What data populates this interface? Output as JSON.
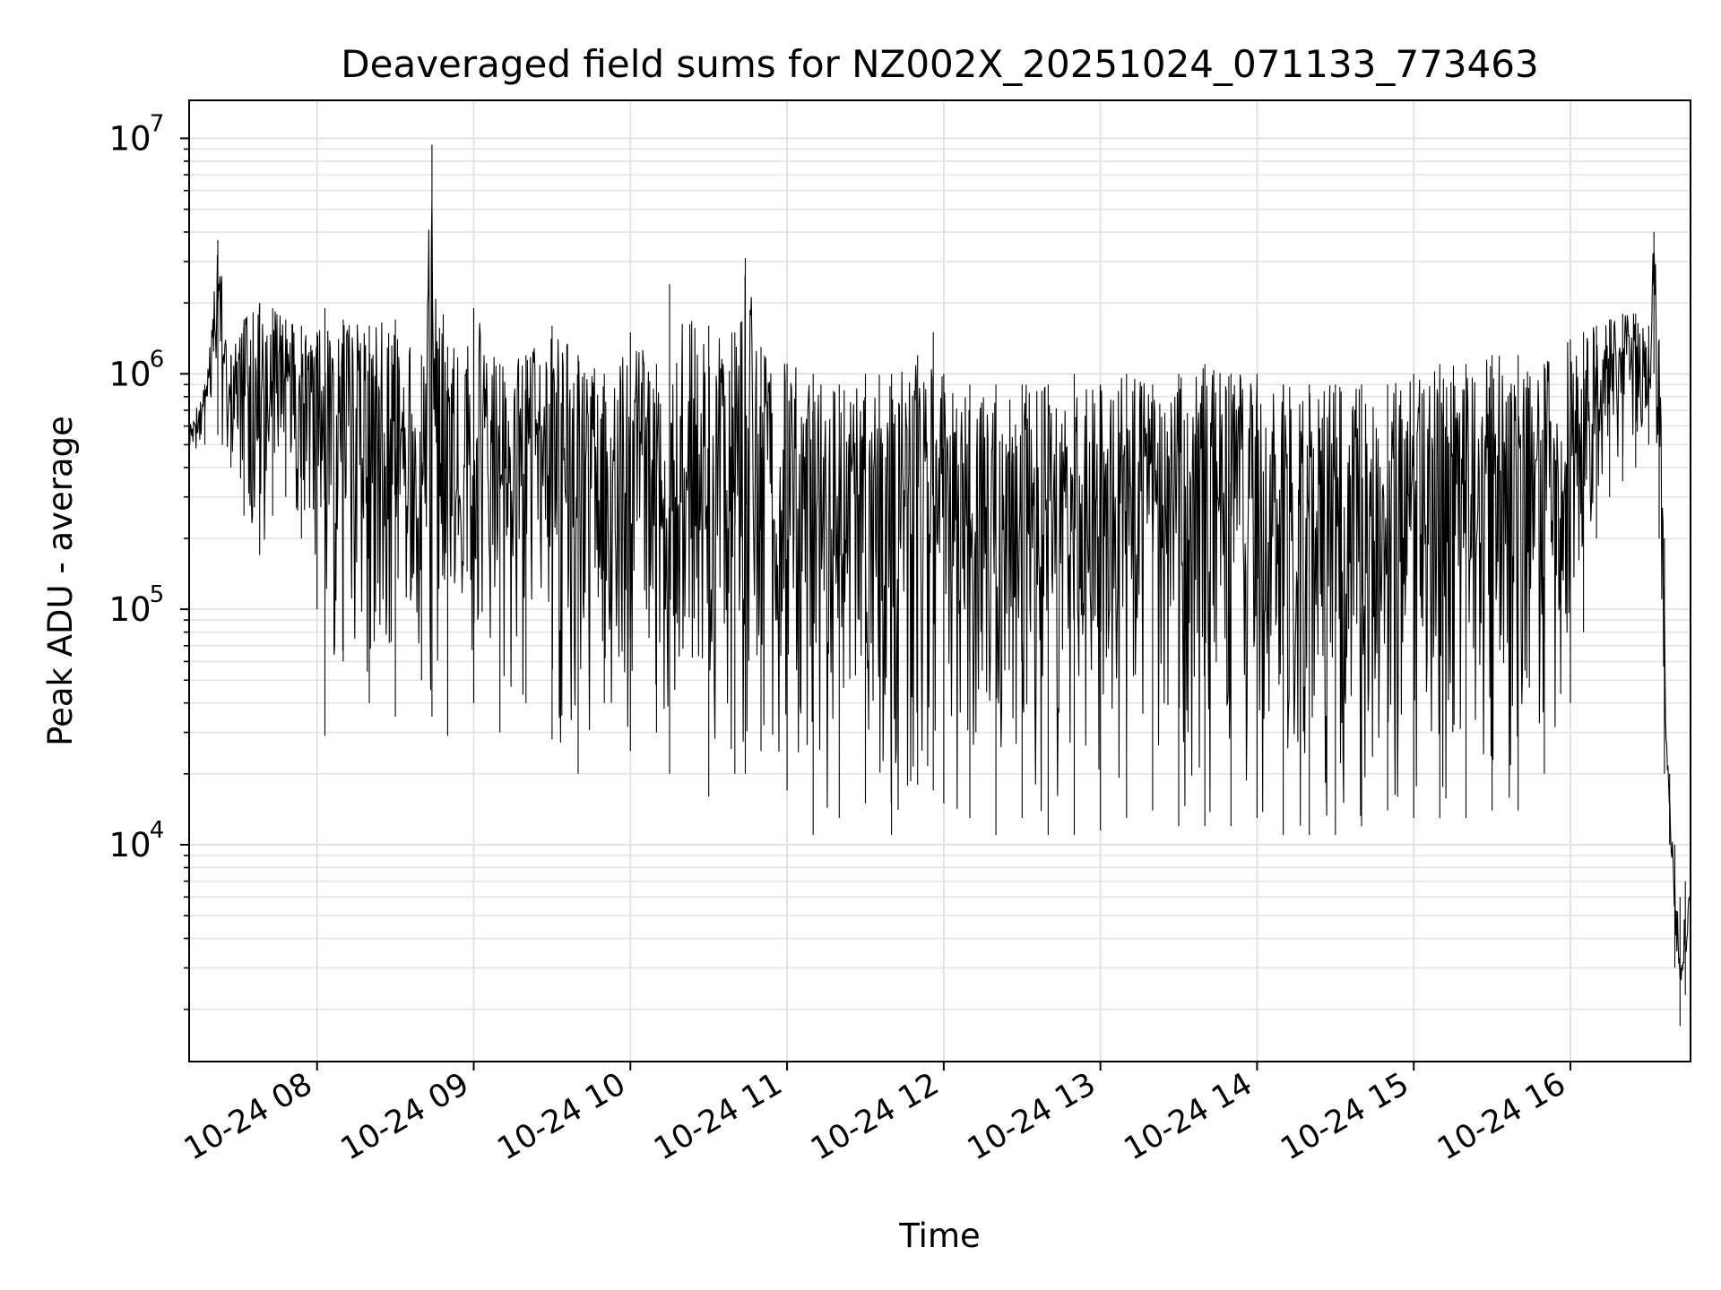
{
  "chart_data": {
    "type": "line",
    "title": "Deaveraged field sums for NZ002X_20251024_071133_773463",
    "xlabel": "Time",
    "ylabel": "Peak ADU - average",
    "yscale": "log",
    "grid": true,
    "grid_minor": true,
    "legend": "none",
    "xlim": [
      "2025-10-24 07:11",
      "2025-10-24 16:46"
    ],
    "ylim": [
      1200,
      14500000
    ],
    "xticks": [
      {
        "t": "2025-10-24 08:00",
        "label": "10-24 08"
      },
      {
        "t": "2025-10-24 09:00",
        "label": "10-24 09"
      },
      {
        "t": "2025-10-24 10:00",
        "label": "10-24 10"
      },
      {
        "t": "2025-10-24 11:00",
        "label": "10-24 11"
      },
      {
        "t": "2025-10-24 12:00",
        "label": "10-24 12"
      },
      {
        "t": "2025-10-24 13:00",
        "label": "10-24 13"
      },
      {
        "t": "2025-10-24 14:00",
        "label": "10-24 14"
      },
      {
        "t": "2025-10-24 15:00",
        "label": "10-24 15"
      },
      {
        "t": "2025-10-24 16:00",
        "label": "10-24 16"
      }
    ],
    "yticks": [
      {
        "value": 10000,
        "base": "10",
        "exp": "4"
      },
      {
        "value": 100000,
        "base": "10",
        "exp": "5"
      },
      {
        "value": 1000000,
        "base": "10",
        "exp": "6"
      },
      {
        "value": 10000000,
        "base": "10",
        "exp": "7"
      }
    ],
    "series": [
      {
        "color": "#000000",
        "x": [
          "2025-10-24 07:11",
          "2025-10-24 07:17",
          "2025-10-24 07:22",
          "2025-10-24 07:27",
          "2025-10-24 07:32",
          "2025-10-24 07:38",
          "2025-10-24 07:43",
          "2025-10-24 07:48",
          "2025-10-24 07:54",
          "2025-10-24 08:00",
          "2025-10-24 08:03",
          "2025-10-24 08:10",
          "2025-10-24 08:20",
          "2025-10-24 08:30",
          "2025-10-24 08:40",
          "2025-10-24 08:44",
          "2025-10-24 08:50",
          "2025-10-24 09:00",
          "2025-10-24 09:10",
          "2025-10-24 09:20",
          "2025-10-24 09:30",
          "2025-10-24 09:40",
          "2025-10-24 09:50",
          "2025-10-24 10:00",
          "2025-10-24 10:10",
          "2025-10-24 10:15",
          "2025-10-24 10:30",
          "2025-10-24 10:40",
          "2025-10-24 10:44",
          "2025-10-24 10:50",
          "2025-10-24 11:00",
          "2025-10-24 11:10",
          "2025-10-24 11:20",
          "2025-10-24 11:30",
          "2025-10-24 11:40",
          "2025-10-24 11:50",
          "2025-10-24 11:56",
          "2025-10-24 12:00",
          "2025-10-24 12:10",
          "2025-10-24 12:20",
          "2025-10-24 12:30",
          "2025-10-24 12:40",
          "2025-10-24 12:50",
          "2025-10-24 13:00",
          "2025-10-24 13:10",
          "2025-10-24 13:20",
          "2025-10-24 13:30",
          "2025-10-24 13:40",
          "2025-10-24 13:50",
          "2025-10-24 14:00",
          "2025-10-24 14:10",
          "2025-10-24 14:20",
          "2025-10-24 14:30",
          "2025-10-24 14:40",
          "2025-10-24 14:50",
          "2025-10-24 15:00",
          "2025-10-24 15:10",
          "2025-10-24 15:20",
          "2025-10-24 15:30",
          "2025-10-24 15:40",
          "2025-10-24 15:50",
          "2025-10-24 16:00",
          "2025-10-24 16:05",
          "2025-10-24 16:10",
          "2025-10-24 16:15",
          "2025-10-24 16:20",
          "2025-10-24 16:25",
          "2025-10-24 16:30",
          "2025-10-24 16:32",
          "2025-10-24 16:34",
          "2025-10-24 16:36",
          "2025-10-24 16:38",
          "2025-10-24 16:40",
          "2025-10-24 16:42",
          "2025-10-24 16:44",
          "2025-10-24 16:46"
        ],
        "y_high": [
          600000,
          900000,
          3700000,
          1200000,
          1700000,
          2000000,
          1900000,
          1700000,
          1600000,
          1500000,
          1900000,
          1700000,
          1600000,
          1700000,
          1200000,
          9400000,
          1300000,
          1900000,
          1100000,
          1200000,
          1600000,
          1200000,
          1000000,
          1500000,
          1100000,
          2400000,
          1600000,
          1500000,
          3100000,
          1300000,
          1100000,
          1000000,
          900000,
          1000000,
          1000000,
          1200000,
          1500000,
          1000000,
          900000,
          900000,
          900000,
          900000,
          1000000,
          900000,
          1000000,
          900000,
          1000000,
          1100000,
          1000000,
          1000000,
          900000,
          900000,
          900000,
          900000,
          900000,
          1000000,
          1100000,
          1100000,
          1200000,
          1200000,
          1100000,
          1400000,
          1500000,
          1600000,
          1700000,
          1800000,
          1800000,
          1600000,
          4000000,
          1400000,
          200000,
          20000,
          10000,
          6000,
          7000,
          8000
        ],
        "y_low": [
          450000,
          500000,
          550000,
          400000,
          250000,
          170000,
          250000,
          300000,
          200000,
          100000,
          29000,
          60000,
          40000,
          35000,
          50000,
          35000,
          29000,
          40000,
          30000,
          40000,
          28000,
          20000,
          40000,
          25000,
          30000,
          20000,
          16000,
          20000,
          20000,
          25000,
          17000,
          11000,
          13000,
          15000,
          11000,
          18000,
          17000,
          15000,
          13000,
          11000,
          13000,
          11000,
          11000,
          11500,
          13000,
          14000,
          12000,
          12000,
          12000,
          13000,
          11000,
          11000,
          11000,
          12000,
          14000,
          13000,
          13000,
          13000,
          14000,
          14000,
          20000,
          40000,
          80000,
          200000,
          300000,
          350000,
          400000,
          500000,
          1000000,
          200000,
          20000,
          10000,
          3000,
          1700,
          2300,
          4000
        ]
      }
    ]
  }
}
